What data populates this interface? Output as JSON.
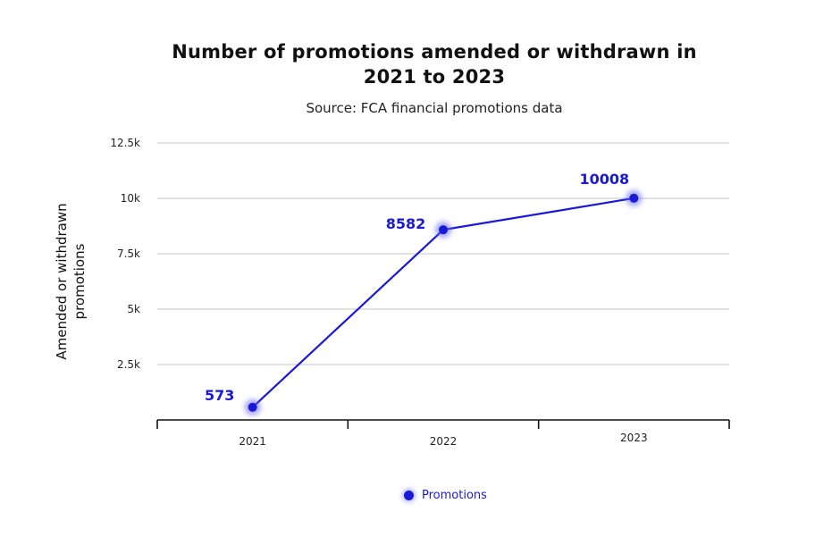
{
  "chart_data": {
    "type": "line",
    "title": [
      "Number of promotions amended or withdrawn in",
      "2021 to 2023"
    ],
    "subtitle": "Source: FCA financial promotions data",
    "xlabel": "",
    "ylabel": [
      "Amended or withdrawn",
      "promotions"
    ],
    "categories": [
      "2021",
      "2022",
      "2023"
    ],
    "ylim": [
      0,
      12500
    ],
    "yticks": [
      2500,
      5000,
      7500,
      10000,
      12500
    ],
    "ytick_labels": [
      "2.5k",
      "5k",
      "7.5k",
      "10k",
      "12.5k"
    ],
    "grid": true,
    "legend_position": "bottom-center",
    "series": [
      {
        "name": "Promotions",
        "values": [
          573,
          8582,
          10008
        ],
        "labels": [
          "573",
          "8582",
          "10008"
        ],
        "color": "#1a1ad6"
      }
    ]
  }
}
